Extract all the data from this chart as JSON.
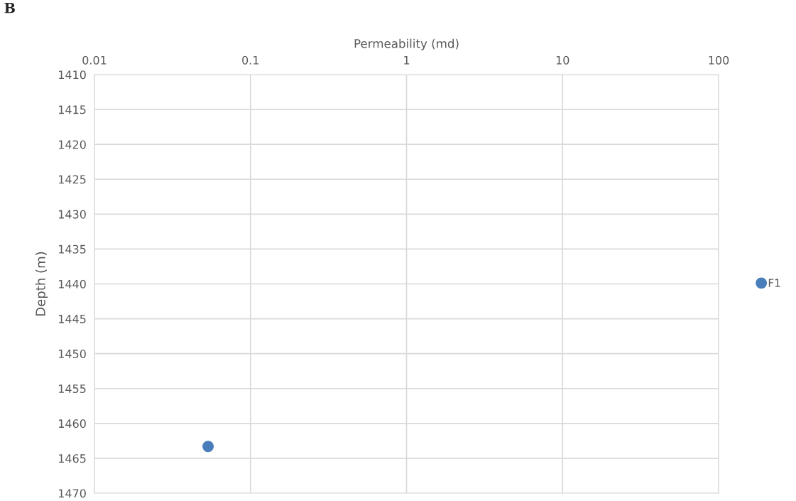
{
  "chart_data": {
    "type": "scatter",
    "xlabel": "Permeability (md)",
    "ylabel": "Depth (m)",
    "annotations": [
      "B"
    ],
    "series": [
      {
        "name": "F1",
        "color": "#4a7ebb",
        "x": [
          0.0535
        ],
        "values": [
          1463.3
        ]
      }
    ],
    "log": "x",
    "xlim": [
      0.01,
      100
    ],
    "xticks": [
      0.01,
      0.1,
      1,
      10,
      100
    ],
    "ylim": [
      1470,
      1410
    ],
    "yticks": [
      1410,
      1415,
      1420,
      1425,
      1430,
      1435,
      1440,
      1445,
      1450,
      1455,
      1460,
      1465,
      1470
    ],
    "grid": true,
    "legend": "right",
    "marker": "circle"
  }
}
